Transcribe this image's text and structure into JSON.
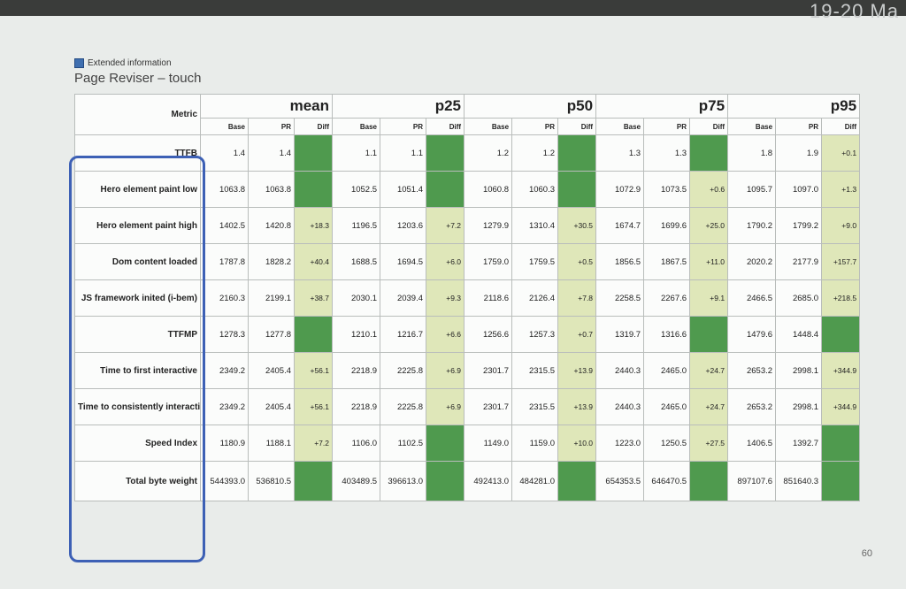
{
  "corner_text": "19-20 Ma",
  "extended_info_label": "Extended information",
  "page_title": "Page Reviser – touch",
  "page_number": "60",
  "colors": {
    "diff_up": "#dfe7b9",
    "diff_down": "#4f9a4e",
    "outline": "#3d60b5"
  },
  "table": {
    "metric_header": "Metric",
    "groups": [
      "mean",
      "p25",
      "p50",
      "p75",
      "p95"
    ],
    "subheaders": [
      "Base",
      "PR",
      "Diff"
    ],
    "rows": [
      {
        "metric": "TTFB",
        "cells": [
          [
            "1.4",
            "1.4",
            "",
            ""
          ],
          [
            "1.1",
            "1.1",
            "",
            ""
          ],
          [
            "1.2",
            "1.2",
            "",
            ""
          ],
          [
            "1.3",
            "1.3",
            "",
            ""
          ],
          [
            "1.8",
            "1.9",
            "+0.1",
            "up"
          ]
        ]
      },
      {
        "metric": "Hero element paint low",
        "cells": [
          [
            "1063.8",
            "1063.8",
            "",
            ""
          ],
          [
            "1052.5",
            "1051.4",
            "",
            ""
          ],
          [
            "1060.8",
            "1060.3",
            "",
            ""
          ],
          [
            "1072.9",
            "1073.5",
            "+0.6",
            "up"
          ],
          [
            "1095.7",
            "1097.0",
            "+1.3",
            "up"
          ]
        ]
      },
      {
        "metric": "Hero element paint high",
        "cells": [
          [
            "1402.5",
            "1420.8",
            "+18.3",
            "up"
          ],
          [
            "1196.5",
            "1203.6",
            "+7.2",
            "up"
          ],
          [
            "1279.9",
            "1310.4",
            "+30.5",
            "up"
          ],
          [
            "1674.7",
            "1699.6",
            "+25.0",
            "up"
          ],
          [
            "1790.2",
            "1799.2",
            "+9.0",
            "up"
          ]
        ]
      },
      {
        "metric": "Dom content loaded",
        "cells": [
          [
            "1787.8",
            "1828.2",
            "+40.4",
            "up"
          ],
          [
            "1688.5",
            "1694.5",
            "+6.0",
            "up"
          ],
          [
            "1759.0",
            "1759.5",
            "+0.5",
            "up"
          ],
          [
            "1856.5",
            "1867.5",
            "+11.0",
            "up"
          ],
          [
            "2020.2",
            "2177.9",
            "+157.7",
            "up"
          ]
        ]
      },
      {
        "metric": "JS framework inited (i-bem)",
        "cells": [
          [
            "2160.3",
            "2199.1",
            "+38.7",
            "up"
          ],
          [
            "2030.1",
            "2039.4",
            "+9.3",
            "up"
          ],
          [
            "2118.6",
            "2126.4",
            "+7.8",
            "up"
          ],
          [
            "2258.5",
            "2267.6",
            "+9.1",
            "up"
          ],
          [
            "2466.5",
            "2685.0",
            "+218.5",
            "up"
          ]
        ]
      },
      {
        "metric": "TTFMP",
        "cells": [
          [
            "1278.3",
            "1277.8",
            "",
            ""
          ],
          [
            "1210.1",
            "1216.7",
            "+6.6",
            "up"
          ],
          [
            "1256.6",
            "1257.3",
            "+0.7",
            "up"
          ],
          [
            "1319.7",
            "1316.6",
            "",
            ""
          ],
          [
            "1479.6",
            "1448.4",
            "",
            ""
          ]
        ]
      },
      {
        "metric": "Time to first interactive",
        "cells": [
          [
            "2349.2",
            "2405.4",
            "+56.1",
            "up"
          ],
          [
            "2218.9",
            "2225.8",
            "+6.9",
            "up"
          ],
          [
            "2301.7",
            "2315.5",
            "+13.9",
            "up"
          ],
          [
            "2440.3",
            "2465.0",
            "+24.7",
            "up"
          ],
          [
            "2653.2",
            "2998.1",
            "+344.9",
            "up"
          ]
        ]
      },
      {
        "metric": "Time to consistently interactive",
        "cells": [
          [
            "2349.2",
            "2405.4",
            "+56.1",
            "up"
          ],
          [
            "2218.9",
            "2225.8",
            "+6.9",
            "up"
          ],
          [
            "2301.7",
            "2315.5",
            "+13.9",
            "up"
          ],
          [
            "2440.3",
            "2465.0",
            "+24.7",
            "up"
          ],
          [
            "2653.2",
            "2998.1",
            "+344.9",
            "up"
          ]
        ]
      },
      {
        "metric": "Speed Index",
        "cells": [
          [
            "1180.9",
            "1188.1",
            "+7.2",
            "up"
          ],
          [
            "1106.0",
            "1102.5",
            "",
            ""
          ],
          [
            "1149.0",
            "1159.0",
            "+10.0",
            "up"
          ],
          [
            "1223.0",
            "1250.5",
            "+27.5",
            "up"
          ],
          [
            "1406.5",
            "1392.7",
            "",
            ""
          ]
        ]
      },
      {
        "metric": "Total byte weight",
        "cells": [
          [
            "544393.0",
            "536810.5",
            "",
            ""
          ],
          [
            "403489.5",
            "396613.0",
            "",
            ""
          ],
          [
            "492413.0",
            "484281.0",
            "",
            ""
          ],
          [
            "654353.5",
            "646470.5",
            "",
            ""
          ],
          [
            "897107.6",
            "851640.3",
            "",
            ""
          ]
        ]
      }
    ]
  }
}
